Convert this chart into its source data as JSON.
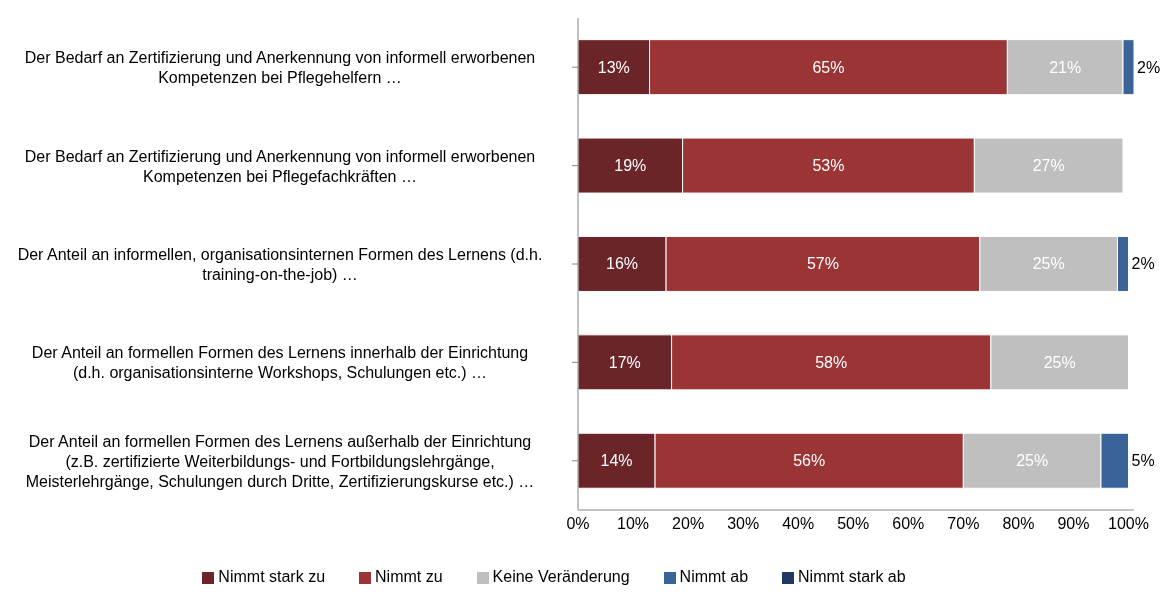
{
  "chart_data": {
    "type": "bar",
    "orientation": "horizontal",
    "stacked": true,
    "categories": [
      "Der Bedarf an Zertifizierung und Anerkennung von informell erworbenen Kompetenzen bei Pflegehelfern …",
      "Der Bedarf an Zertifizierung und Anerkennung von informell erworbenen Kompetenzen bei Pflegefachkräften …",
      "Der Anteil an informellen, organisationsinternen Formen des Lernens (d.h. training-on-the-job) …",
      "Der Anteil an formellen Formen des Lernens innerhalb der Einrichtung (d.h. organisationsinterne Workshops, Schulungen etc.) …",
      "Der Anteil an formellen Formen des Lernens außerhalb der Einrichtung (z.B. zertifizierte Weiterbildungs- und Fortbildungslehrgänge, Meisterlehrgänge, Schulungen durch Dritte, Zertifizierungskurse etc.) …"
    ],
    "series": [
      {
        "name": "Nimmt stark zu",
        "color": "#6b2427",
        "values": [
          13,
          19,
          16,
          17,
          14
        ],
        "value_labels": [
          "13%",
          "19%",
          "16%",
          "17%",
          "14%"
        ]
      },
      {
        "name": "Nimmt zu",
        "color": "#9b3535",
        "values": [
          65,
          53,
          57,
          58,
          56
        ],
        "value_labels": [
          "65%",
          "53%",
          "57%",
          "58%",
          "56%"
        ]
      },
      {
        "name": "Keine Veränderung",
        "color": "#bfbfbf",
        "values": [
          21,
          27,
          25,
          25,
          25
        ],
        "value_labels": [
          "21%",
          "27%",
          "25%",
          "25%",
          "25%"
        ]
      },
      {
        "name": "Nimmt ab",
        "color": "#3a6399",
        "values": [
          2,
          null,
          2,
          null,
          5
        ],
        "value_labels": [
          "2%",
          null,
          "2%",
          null,
          "5%"
        ]
      },
      {
        "name": "Nimmt stark ab",
        "color": "#1f3864",
        "values": [
          null,
          null,
          null,
          null,
          null
        ]
      }
    ],
    "xlim": [
      0,
      101
    ],
    "xticks": [
      {
        "value": 0,
        "label": "0%"
      },
      {
        "value": 10,
        "label": "10%"
      },
      {
        "value": 20,
        "label": "20%"
      },
      {
        "value": 30,
        "label": "30%"
      },
      {
        "value": 40,
        "label": "40%"
      },
      {
        "value": 50,
        "label": "50%"
      },
      {
        "value": 60,
        "label": "60%"
      },
      {
        "value": 70,
        "label": "70%"
      },
      {
        "value": 80,
        "label": "80%"
      },
      {
        "value": 90,
        "label": "90%"
      },
      {
        "value": 100,
        "label": "100%"
      }
    ],
    "legend": "bottom"
  }
}
